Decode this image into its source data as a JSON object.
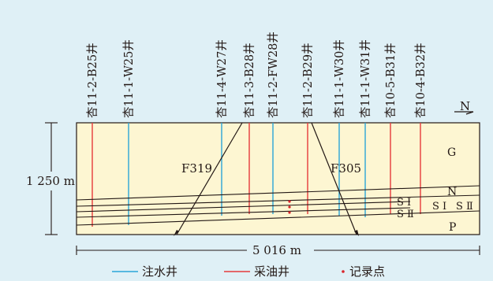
{
  "wells": [
    {
      "name": "杏11-2-B25井",
      "type": "oil"
    },
    {
      "name": "杏11-1-W25井",
      "type": "water"
    },
    {
      "name": "杏11-4-W27井",
      "type": "water"
    },
    {
      "name": "杏11-3-B28井",
      "type": "oil"
    },
    {
      "name": "杏11-2-FW28井",
      "type": "water"
    },
    {
      "name": "杏11-2-B29井",
      "type": "oil"
    },
    {
      "name": "杏11-1-W30井",
      "type": "water"
    },
    {
      "name": "杏11-1-W31井",
      "type": "water"
    },
    {
      "name": "杏10-5-B31井",
      "type": "oil"
    },
    {
      "name": "杏10-4-B32井",
      "type": "oil"
    }
  ],
  "faults": [
    {
      "name": "F319"
    },
    {
      "name": "F305"
    }
  ],
  "strata": {
    "G": "G",
    "N": "N",
    "SI": "S Ⅰ",
    "SII": "S Ⅱ",
    "P": "P"
  },
  "north_label": "N",
  "dimensions": {
    "height": "1 250 m",
    "width": "5 016 m"
  },
  "legend": [
    {
      "key": "water",
      "label": "注水井",
      "color": "#2aa5d8"
    },
    {
      "key": "oil",
      "label": "采油井",
      "color": "#e63b3b"
    },
    {
      "key": "record",
      "label": "记录点",
      "color": "#d9252a"
    }
  ],
  "colors": {
    "background": "#dff0f6",
    "section_fill": "#fdf6d2",
    "line": "#231815"
  }
}
